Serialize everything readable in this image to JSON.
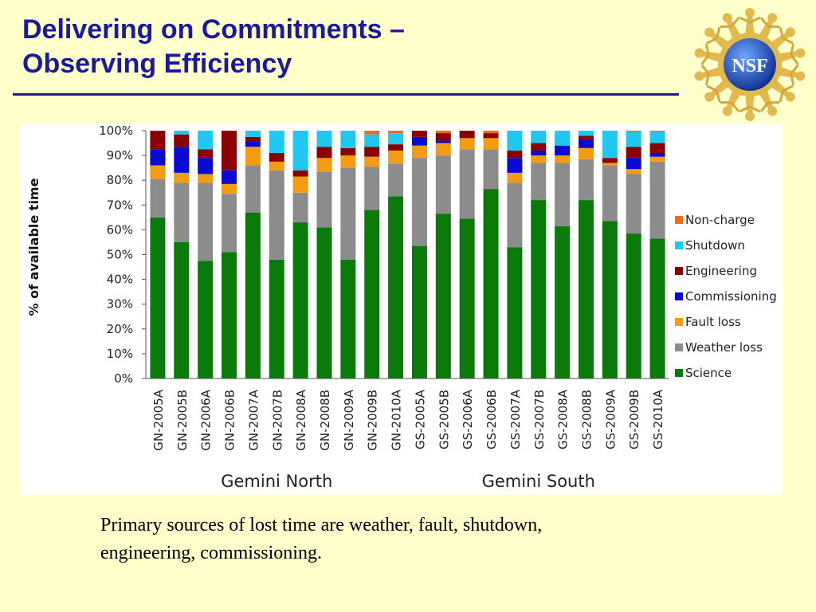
{
  "slide": {
    "title_line1": "Delivering on Commitments –",
    "title_line2": "Observing Efficiency",
    "caption_line1": "Primary sources of lost time are weather, fault, shutdown,",
    "caption_line2": "engineering, commissioning.",
    "logo_text": "NSF",
    "title_color": "#1a1aa0",
    "background": "#ffffcc"
  },
  "chart_data": {
    "type": "bar",
    "stacked": true,
    "ylabel": "% of available time",
    "ylim": [
      0,
      100
    ],
    "yticks": [
      0,
      10,
      20,
      30,
      40,
      50,
      60,
      70,
      80,
      90,
      100
    ],
    "ytick_labels": [
      "0%",
      "10%",
      "20%",
      "30%",
      "40%",
      "50%",
      "60%",
      "70%",
      "80%",
      "90%",
      "100%"
    ],
    "grid": false,
    "legend_position": "right",
    "categories": [
      "GN-2005A",
      "GN-2005B",
      "GN-2006A",
      "GN-2006B",
      "GN-2007A",
      "GN-2007B",
      "GN-2008A",
      "GN-2008B",
      "GN-2009A",
      "GN-2009B",
      "GN-2010A",
      "GS-2005A",
      "GS-2005B",
      "GS-2006A",
      "GS-2006B",
      "GS-2007A",
      "GS-2007B",
      "GS-2008A",
      "GS-2008B",
      "GS-2009A",
      "GS-2009B",
      "GS-2010A"
    ],
    "groups": [
      {
        "label": "Gemini North",
        "from": 0,
        "to": 10
      },
      {
        "label": "Gemini South",
        "from": 11,
        "to": 21
      }
    ],
    "series": [
      {
        "name": "Science",
        "color": "#0a7a0a",
        "values": [
          65,
          55,
          47.5,
          51,
          67,
          48,
          63,
          61,
          48,
          68,
          73.5,
          53.5,
          66.5,
          64.5,
          76.5,
          53,
          72,
          61.5,
          72,
          63.5,
          58.5,
          56.5
        ]
      },
      {
        "name": "Weather loss",
        "color": "#8c8c8c",
        "values": [
          15.5,
          24,
          31.5,
          23.5,
          19,
          36,
          12,
          22.5,
          37,
          17.5,
          13,
          35.5,
          23.5,
          28,
          16,
          26,
          15,
          25.5,
          16.5,
          22.5,
          24,
          31
        ]
      },
      {
        "name": "Fault loss",
        "color": "#f39c12",
        "values": [
          5.5,
          4,
          3.5,
          4,
          7.5,
          3.5,
          6.5,
          5.5,
          5,
          4,
          5.5,
          5,
          5,
          4.5,
          4.5,
          4,
          3,
          3,
          4.5,
          1,
          2,
          2
        ]
      },
      {
        "name": "Commissioning",
        "color": "#0a0ad2",
        "values": [
          6.5,
          10.5,
          6.5,
          5.5,
          2,
          0,
          0,
          0,
          0,
          0,
          0,
          3.5,
          1,
          0,
          0,
          6,
          2,
          4,
          3.5,
          0,
          4.5,
          1.5
        ]
      },
      {
        "name": "Engineering",
        "color": "#8b0000",
        "values": [
          7.5,
          5,
          3.5,
          16,
          2,
          3.5,
          2.5,
          4.5,
          3,
          4,
          2.5,
          2.5,
          3,
          3,
          2,
          3,
          3,
          0,
          1.5,
          2,
          4.5,
          4
        ]
      },
      {
        "name": "Shutdown",
        "color": "#1ec8ee",
        "values": [
          0,
          1.5,
          7.5,
          0,
          2.5,
          9,
          16,
          6.5,
          7,
          5,
          4.5,
          0,
          0,
          0,
          0,
          8,
          5,
          6,
          2,
          11,
          6,
          4.5
        ]
      },
      {
        "name": "Non-charge",
        "color": "#ef6c1a",
        "values": [
          0,
          0,
          0,
          0,
          0,
          0,
          0,
          0,
          0,
          1.5,
          1,
          0,
          1,
          0,
          1,
          0,
          0,
          0,
          0,
          0,
          0.5,
          0.5
        ]
      }
    ]
  }
}
